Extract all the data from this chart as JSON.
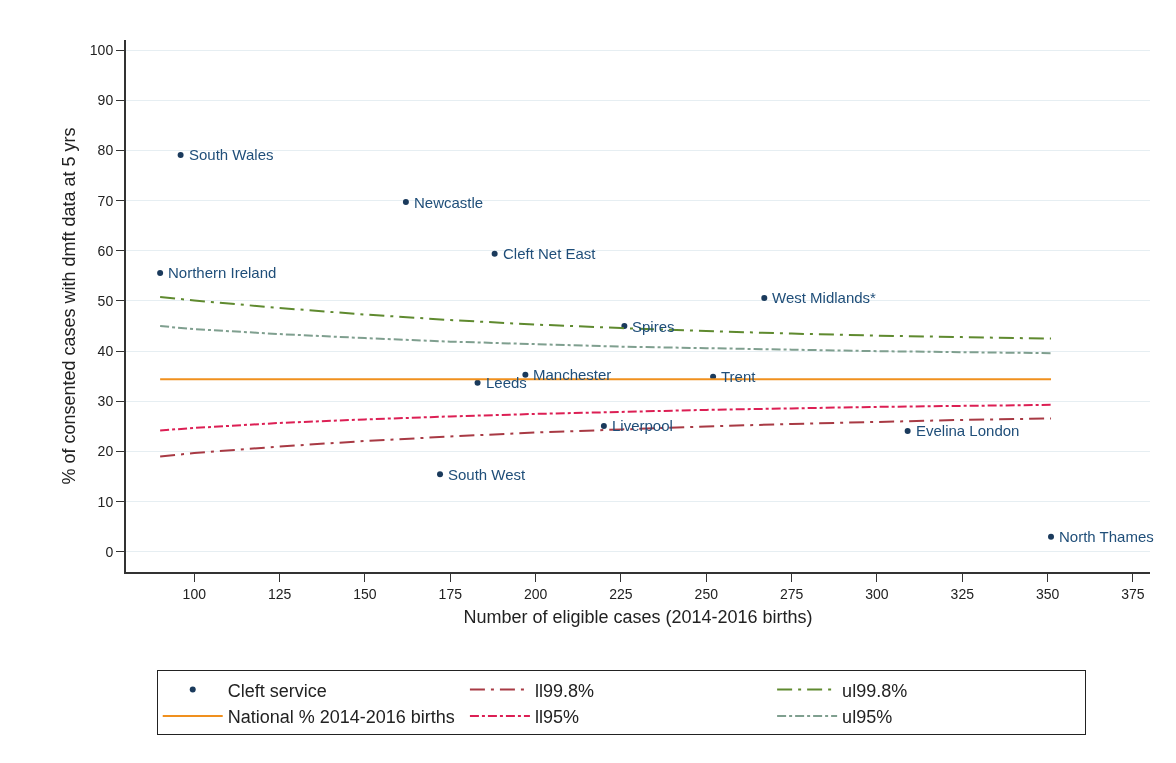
{
  "chart_data": {
    "type": "scatter",
    "xlabel": "Number of eligible cases (2014-2016 births)",
    "ylabel": "% of consented cases with dmft data at 5 yrs",
    "xlim": [
      80,
      380
    ],
    "ylim": [
      -4,
      102
    ],
    "xticks": [
      100,
      125,
      150,
      175,
      200,
      225,
      250,
      275,
      300,
      325,
      350,
      375
    ],
    "yticks": [
      0,
      10,
      20,
      30,
      40,
      50,
      60,
      70,
      80,
      90,
      100
    ],
    "grid": "y",
    "legend": "bottom",
    "series": [
      {
        "name": "Cleft service",
        "marker": "circle",
        "color": "#1a3a5c",
        "x": [
          96,
          162,
          188,
          90,
          267,
          226,
          197,
          183,
          252,
          220,
          309,
          172,
          351
        ],
        "values": [
          79.1,
          69.7,
          59.4,
          55.6,
          50.6,
          45,
          35.3,
          33.7,
          34.9,
          25.1,
          24.1,
          15.5,
          3
        ]
      },
      {
        "name": "ll99.8%",
        "type": "line",
        "line_style": "dashed",
        "color": "#a83a44",
        "x": [
          90,
          100,
          125,
          150,
          175,
          200,
          225,
          250,
          275,
          300,
          325,
          351
        ],
        "values": [
          19.0,
          19.7,
          21.0,
          22.1,
          23.0,
          23.8,
          24.4,
          25.0,
          25.5,
          25.9,
          26.3,
          26.6
        ]
      },
      {
        "name": "ul99.8%",
        "type": "line",
        "line_style": "dashed",
        "color": "#5f8a2f",
        "x": [
          90,
          100,
          125,
          150,
          175,
          200,
          225,
          250,
          275,
          300,
          325,
          351
        ],
        "values": [
          50.8,
          50.1,
          48.6,
          47.3,
          46.2,
          45.3,
          44.6,
          44.0,
          43.5,
          43.1,
          42.8,
          42.5
        ]
      },
      {
        "name": "National % 2014-2016 births",
        "type": "line",
        "line_style": "solid",
        "color": "#f0901e",
        "x": [
          90,
          351
        ],
        "values": [
          34.4,
          34.4
        ]
      },
      {
        "name": "ll95%",
        "type": "line",
        "line_style": "dotted",
        "color": "#dc1f54",
        "x": [
          90,
          100,
          125,
          150,
          175,
          200,
          225,
          250,
          275,
          300,
          325,
          351
        ],
        "values": [
          24.2,
          24.7,
          25.7,
          26.4,
          27.0,
          27.5,
          27.9,
          28.3,
          28.6,
          28.9,
          29.1,
          29.3
        ]
      },
      {
        "name": "ul95%",
        "type": "line",
        "line_style": "dotted",
        "color": "#7f9f8f",
        "x": [
          90,
          100,
          125,
          150,
          175,
          200,
          225,
          250,
          275,
          300,
          325,
          351
        ],
        "values": [
          45.0,
          44.4,
          43.4,
          42.6,
          41.9,
          41.4,
          40.9,
          40.6,
          40.3,
          40.0,
          39.8,
          39.6
        ]
      }
    ],
    "annotations": [
      {
        "text": "South Wales",
        "x": 96,
        "y": 79.1
      },
      {
        "text": "Newcastle",
        "x": 162,
        "y": 69.7
      },
      {
        "text": "Cleft Net East",
        "x": 188,
        "y": 59.4
      },
      {
        "text": "Northern Ireland",
        "x": 90,
        "y": 55.6
      },
      {
        "text": "West Midlands*",
        "x": 267,
        "y": 50.6
      },
      {
        "text": "Spires",
        "x": 226,
        "y": 45
      },
      {
        "text": "Manchester",
        "x": 197,
        "y": 35.3
      },
      {
        "text": "Leeds",
        "x": 183,
        "y": 33.7
      },
      {
        "text": "Trent",
        "x": 252,
        "y": 34.9
      },
      {
        "text": "Liverpool",
        "x": 220,
        "y": 25.1
      },
      {
        "text": "Evelina London",
        "x": 309,
        "y": 24.1
      },
      {
        "text": "South West",
        "x": 172,
        "y": 15.5
      },
      {
        "text": "North Thames",
        "x": 351,
        "y": 3
      }
    ]
  }
}
